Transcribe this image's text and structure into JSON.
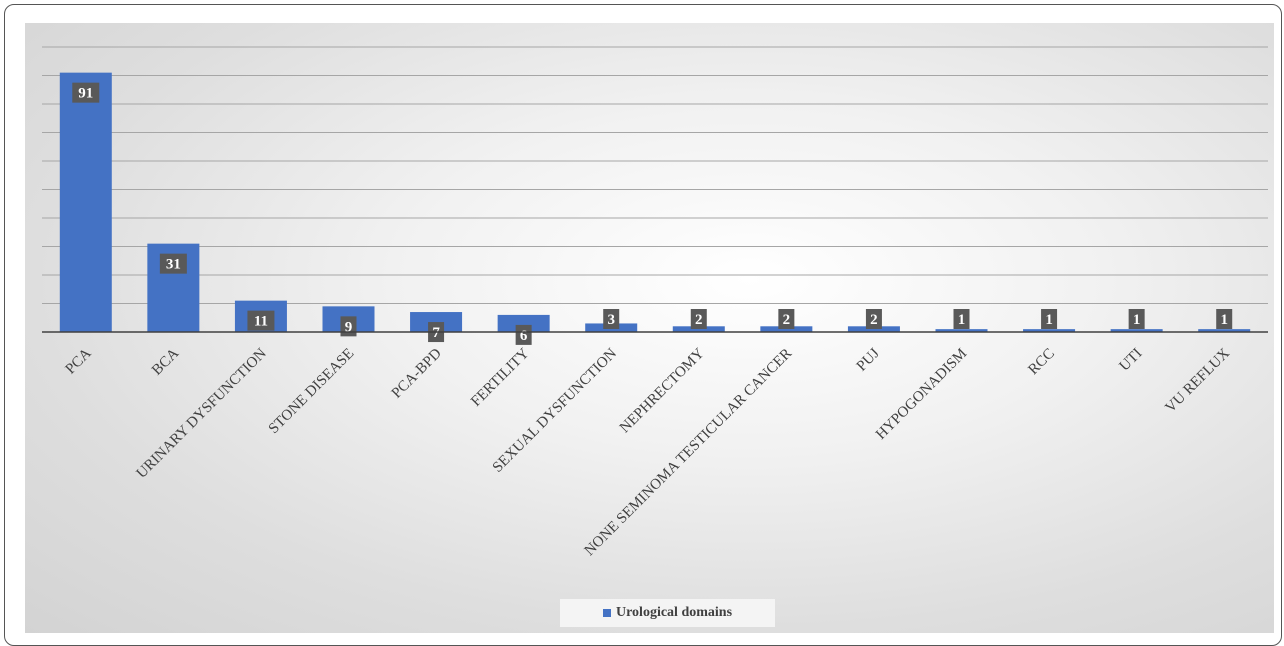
{
  "chart_data": {
    "type": "bar",
    "categories": [
      "PCA",
      "BCA",
      "URINARY DYSFUNCTION",
      "STONE DISEASE",
      "PCA-BPD",
      "FERTILITY",
      "SEXUAL DYSFUNCTION",
      "NEPHRECTOMY",
      "NONE SEMINOMA TESTICULAR CANCER",
      "PUJ",
      "HYPOGONADISM",
      "RCC",
      "UTI",
      "VU REFLUX"
    ],
    "series": [
      {
        "name": "Urological domains",
        "values": [
          91,
          31,
          11,
          9,
          7,
          6,
          3,
          2,
          2,
          2,
          1,
          1,
          1,
          1
        ]
      }
    ],
    "ylim": [
      0,
      100
    ],
    "grid": true,
    "legend_position": "bottom",
    "colors": {
      "bar": "#4472c4",
      "label_bg": "#595959",
      "label_text": "#ffffff",
      "grid": "#a6a6a6",
      "axis": "#404040"
    }
  }
}
